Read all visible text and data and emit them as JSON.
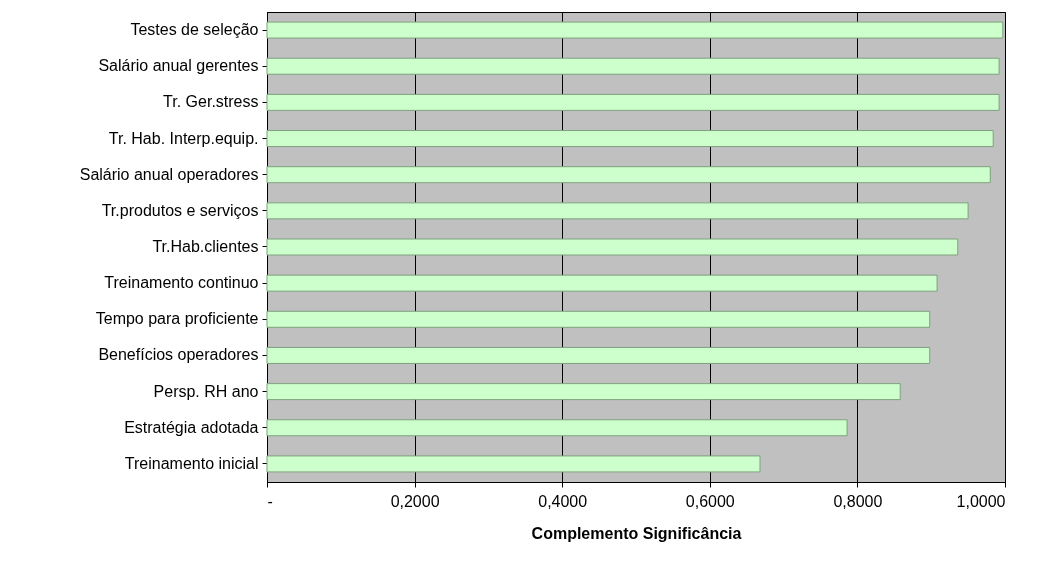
{
  "chart_data": {
    "type": "bar",
    "orientation": "horizontal",
    "xlabel": "Complemento Significância",
    "categories": [
      "Testes de seleção",
      "Salário anual gerentes",
      "Tr. Ger.stress",
      "Tr. Hab. Interp.equip.",
      "Salário anual operadores",
      "Tr.produtos e serviços",
      "Tr.Hab.clientes",
      "Treinamento continuo",
      "Tempo para proficiente",
      "Benefícios operadores",
      "Persp. RH ano",
      "Estratégia adotada",
      "Treinamento inicial"
    ],
    "values": [
      0.997,
      0.992,
      0.992,
      0.984,
      0.98,
      0.95,
      0.936,
      0.908,
      0.898,
      0.898,
      0.858,
      0.786,
      0.668
    ],
    "color": "#ccffcc",
    "xlim": [
      0,
      1
    ],
    "xticks": [
      {
        "value": 0,
        "label": "-"
      },
      {
        "value": 0.2,
        "label": "0,2000"
      },
      {
        "value": 0.4,
        "label": "0,4000"
      },
      {
        "value": 0.6,
        "label": "0,6000"
      },
      {
        "value": 0.8,
        "label": "0,8000"
      },
      {
        "value": 1,
        "label": "1,0000"
      }
    ],
    "grid": "x"
  }
}
